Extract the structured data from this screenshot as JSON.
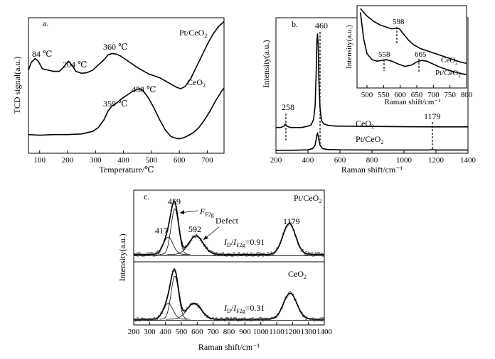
{
  "chart_data": [
    {
      "panel": "a.",
      "type": "line",
      "xlabel": "Temperature/℃",
      "ylabel": "TCD signal(a.u.)",
      "xlim": [
        60,
        760
      ],
      "ylim": [
        0,
        1
      ],
      "xticks": [
        100,
        200,
        300,
        400,
        500,
        600,
        700
      ],
      "series": [
        {
          "name": "Pt/CeO2",
          "label_main": "Pt/CeO",
          "label_sub": "2",
          "x": [
            60,
            70,
            84,
            95,
            110,
            130,
            150,
            170,
            185,
            195,
            204,
            215,
            230,
            250,
            270,
            290,
            310,
            330,
            345,
            360,
            375,
            390,
            410,
            430,
            450,
            470,
            490,
            510,
            530,
            550,
            570,
            590,
            605,
            620,
            640,
            660,
            680,
            700,
            720,
            740,
            760
          ],
          "y": [
            0.59,
            0.65,
            0.68,
            0.66,
            0.6,
            0.59,
            0.58,
            0.58,
            0.61,
            0.64,
            0.66,
            0.63,
            0.58,
            0.565,
            0.57,
            0.59,
            0.63,
            0.67,
            0.71,
            0.72,
            0.715,
            0.7,
            0.67,
            0.64,
            0.61,
            0.585,
            0.56,
            0.545,
            0.53,
            0.505,
            0.48,
            0.455,
            0.445,
            0.46,
            0.52,
            0.61,
            0.7,
            0.79,
            0.87,
            0.93,
            0.97
          ]
        },
        {
          "name": "CeO2",
          "label_main": "CeO",
          "label_sub": "2",
          "x": [
            60,
            100,
            150,
            200,
            250,
            290,
            310,
            330,
            345,
            359,
            375,
            390,
            410,
            430,
            450,
            458,
            470,
            490,
            510,
            530,
            550,
            570,
            590,
            600,
            615,
            630,
            650,
            670,
            690,
            710,
            730,
            750,
            760
          ],
          "y": [
            0.085,
            0.08,
            0.085,
            0.085,
            0.09,
            0.11,
            0.14,
            0.2,
            0.27,
            0.31,
            0.33,
            0.36,
            0.39,
            0.42,
            0.44,
            0.445,
            0.43,
            0.37,
            0.29,
            0.2,
            0.12,
            0.07,
            0.055,
            0.052,
            0.06,
            0.075,
            0.1,
            0.14,
            0.2,
            0.27,
            0.35,
            0.42,
            0.45
          ]
        }
      ],
      "annotations": [
        {
          "text": "84 ℃",
          "x": 84,
          "y": 0.68
        },
        {
          "text": "204 ℃",
          "x": 204,
          "y": 0.66
        },
        {
          "text": "360 ℃",
          "x": 360,
          "y": 0.72
        },
        {
          "text": "359 ℃",
          "x": 359,
          "y": 0.31
        },
        {
          "text": "458 ℃",
          "x": 458,
          "y": 0.445
        }
      ]
    },
    {
      "panel": "b.",
      "type": "line",
      "xlabel": "Raman shift/cm⁻¹",
      "ylabel": "Intensity(a.u.)",
      "xlim": [
        200,
        1400
      ],
      "ylim": [
        0,
        1
      ],
      "xticks": [
        200,
        400,
        600,
        800,
        1000,
        1200,
        1400
      ],
      "series": [
        {
          "name": "CeO2",
          "label_main": "CeO",
          "label_sub": "2",
          "x": [
            200,
            230,
            250,
            258,
            268,
            290,
            320,
            360,
            400,
            420,
            435,
            445,
            452,
            456,
            460,
            464,
            468,
            475,
            485,
            500,
            530,
            580,
            650,
            800,
            1000,
            1200,
            1400
          ],
          "y": [
            0.19,
            0.19,
            0.2,
            0.215,
            0.2,
            0.19,
            0.19,
            0.19,
            0.2,
            0.21,
            0.25,
            0.35,
            0.62,
            0.83,
            0.88,
            0.8,
            0.55,
            0.34,
            0.24,
            0.215,
            0.205,
            0.2,
            0.2,
            0.198,
            0.196,
            0.195,
            0.195
          ]
        },
        {
          "name": "Pt/CeO2",
          "label_main": "Pt/CeO",
          "label_sub": "2",
          "x": [
            200,
            300,
            400,
            430,
            445,
            455,
            460,
            465,
            475,
            490,
            520,
            600,
            800,
            1000,
            1150,
            1179,
            1210,
            1300,
            1400
          ],
          "y": [
            0.022,
            0.022,
            0.025,
            0.035,
            0.06,
            0.13,
            0.15,
            0.12,
            0.06,
            0.035,
            0.028,
            0.025,
            0.024,
            0.024,
            0.024,
            0.026,
            0.024,
            0.024,
            0.024
          ]
        }
      ],
      "annotations": [
        {
          "text": "460",
          "x": 460
        },
        {
          "text": "258",
          "x": 258
        },
        {
          "text": "1179",
          "x": 1179
        }
      ],
      "inset": {
        "xlabel": "Raman shift/cm⁻¹",
        "ylabel": "Intensity(a.u.)",
        "xlim": [
          470,
          800
        ],
        "xticks": [
          500,
          550,
          600,
          650,
          700,
          750,
          800
        ],
        "series": [
          {
            "name": "CeO2",
            "label_main": "CeO",
            "label_sub": "2",
            "x": [
              480,
              490,
              500,
              520,
              540,
              560,
              575,
              590,
              598,
              610,
              625,
              640,
              660,
              680,
              700,
              720,
              740,
              760,
              780,
              800
            ],
            "y": [
              1.0,
              0.95,
              0.9,
              0.83,
              0.78,
              0.75,
              0.73,
              0.74,
              0.73,
              0.66,
              0.58,
              0.52,
              0.47,
              0.44,
              0.41,
              0.38,
              0.35,
              0.32,
              0.29,
              0.27
            ]
          },
          {
            "name": "Pt/CeO2",
            "label_main": "Pt/CeO",
            "label_sub": "2",
            "x": [
              480,
              490,
              500,
              515,
              530,
              545,
              558,
              575,
              595,
              615,
              635,
              650,
              665,
              680,
              700,
              720,
              740,
              760,
              780,
              800
            ],
            "y": [
              0.95,
              0.6,
              0.4,
              0.32,
              0.3,
              0.31,
              0.32,
              0.3,
              0.26,
              0.23,
              0.25,
              0.29,
              0.31,
              0.3,
              0.26,
              0.22,
              0.19,
              0.16,
              0.14,
              0.12
            ]
          }
        ],
        "annotations": [
          {
            "text": "598",
            "x": 598
          },
          {
            "text": "558",
            "x": 558
          },
          {
            "text": "665",
            "x": 665
          }
        ]
      }
    },
    {
      "panel": "c.",
      "type": "scatter",
      "xlabel": "Raman shift/cm⁻¹",
      "ylabel": "Intensity(a.u.)",
      "xlim": [
        200,
        1400
      ],
      "xticks": [
        200,
        300,
        400,
        500,
        600,
        700,
        800,
        900,
        1000,
        1100,
        1200,
        1300,
        1400
      ],
      "subplots": [
        {
          "name": "Pt/CeO2",
          "label_main": "Pt/CeO",
          "label_sub": "2",
          "baseline": 0.12,
          "components": [
            {
              "center": 417,
              "amp": 0.28,
              "width": 30
            },
            {
              "center": 459,
              "amp": 0.74,
              "width": 24
            },
            {
              "center": 592,
              "amp": 0.3,
              "width": 45
            },
            {
              "center": 1179,
              "amp": 0.5,
              "width": 40
            }
          ],
          "ratio_label": "=0.91",
          "annotations": [
            "459",
            "417",
            "592",
            "1179",
            "Defect"
          ],
          "fit_label": "F",
          "fit_sub": "F2g"
        },
        {
          "name": "CeO2",
          "label_main": "CeO",
          "label_sub": "2",
          "baseline": 0.1,
          "components": [
            {
              "center": 417,
              "amp": 0.28,
              "width": 30
            },
            {
              "center": 459,
              "amp": 0.76,
              "width": 24
            },
            {
              "center": 580,
              "amp": 0.28,
              "width": 45
            },
            {
              "center": 1185,
              "amp": 0.46,
              "width": 42
            }
          ],
          "ratio_label": "=0.31"
        }
      ],
      "ratio_prefix": "I",
      "ratio_sub_d": "D",
      "ratio_slash": "/",
      "ratio_sub_f": "F2g"
    }
  ]
}
